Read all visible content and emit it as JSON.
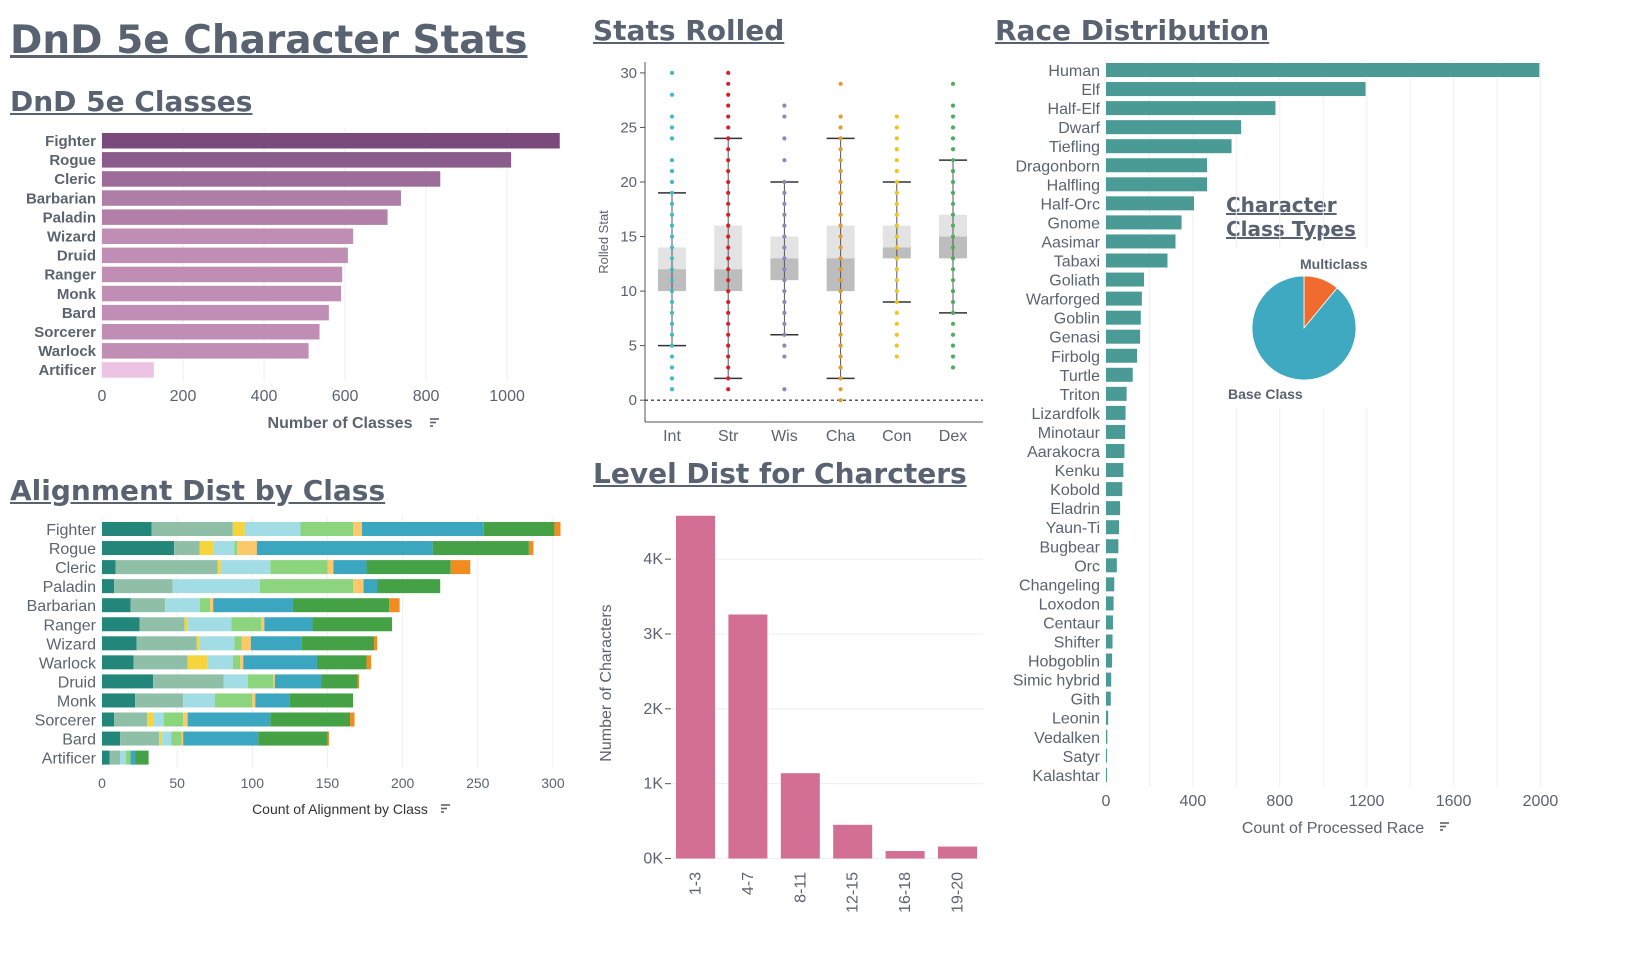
{
  "dashboard_title": "DnD 5e Character Stats",
  "colors": {
    "title": "#596271",
    "axis_text": "#5b6371",
    "race_bar": "#4a9a96",
    "level_bar": "#d36f94",
    "pie_base": "#3fa9c1",
    "pie_multi": "#f26b2e"
  },
  "chart_data": [
    {
      "id": "classes",
      "type": "bar",
      "orientation": "horizontal",
      "title": "DnD 5e Classes ",
      "xlabel": "Number of Classes",
      "xlim": [
        0,
        1180
      ],
      "xticks": [
        0,
        200,
        400,
        600,
        800,
        1000
      ],
      "categories": [
        "Fighter",
        "Rogue",
        "Cleric",
        "Barbarian",
        "Paladin",
        "Wizard",
        "Druid",
        "Ranger",
        "Monk",
        "Bard",
        "Sorcerer",
        "Warlock",
        "Artificer"
      ],
      "values": [
        1130,
        1010,
        835,
        738,
        705,
        620,
        607,
        593,
        590,
        560,
        537,
        510,
        128
      ],
      "bar_colors": [
        "#7b4a7c",
        "#8a5c8b",
        "#9d6c9b",
        "#ae7ea9",
        "#b27fa8",
        "#c08db5",
        "#c08db5",
        "#c08db5",
        "#c08db5",
        "#c08db5",
        "#c08db5",
        "#c08db5",
        "#edc3e3"
      ]
    },
    {
      "id": "stats",
      "type": "box",
      "title": "Stats Rolled",
      "ylabel": "Rolled Stat",
      "ylim": [
        -2,
        31
      ],
      "yticks": [
        0,
        5,
        10,
        15,
        20,
        25,
        30
      ],
      "reference_line": 0,
      "series": [
        {
          "name": "Int",
          "color": "#3dbcc8",
          "whisker_low": 5,
          "q1": 10,
          "median": 12,
          "q3": 14,
          "whisker_high": 19,
          "points": [
            1,
            2,
            3,
            4,
            5,
            6,
            7,
            8,
            9,
            10,
            11,
            12,
            13,
            14,
            15,
            16,
            17,
            18,
            19,
            20,
            21,
            22,
            24,
            25,
            26,
            28,
            30
          ]
        },
        {
          "name": "Str",
          "color": "#d8202d",
          "whisker_low": 2,
          "q1": 10,
          "median": 12,
          "q3": 16,
          "whisker_high": 24,
          "points": [
            1,
            2,
            3,
            4,
            5,
            6,
            7,
            8,
            9,
            10,
            11,
            12,
            13,
            14,
            15,
            16,
            17,
            18,
            19,
            20,
            21,
            22,
            23,
            24,
            25,
            26,
            27,
            28,
            29,
            30
          ]
        },
        {
          "name": "Wis",
          "color": "#8b86c4",
          "whisker_low": 6,
          "q1": 11,
          "median": 13,
          "q3": 15,
          "whisker_high": 20,
          "points": [
            1,
            4,
            5,
            6,
            7,
            8,
            9,
            10,
            11,
            12,
            13,
            14,
            15,
            16,
            17,
            18,
            19,
            20,
            22,
            24,
            26,
            27
          ]
        },
        {
          "name": "Cha",
          "color": "#e69a2a",
          "whisker_low": 2,
          "q1": 10,
          "median": 13,
          "q3": 16,
          "whisker_high": 24,
          "points": [
            0,
            1,
            2,
            3,
            4,
            5,
            6,
            7,
            8,
            9,
            10,
            11,
            12,
            13,
            14,
            15,
            16,
            17,
            18,
            19,
            20,
            21,
            22,
            23,
            24,
            25,
            26,
            29
          ]
        },
        {
          "name": "Con",
          "color": "#f2c418",
          "whisker_low": 9,
          "q1": 13,
          "median": 14,
          "q3": 16,
          "whisker_high": 20,
          "points": [
            4,
            5,
            6,
            7,
            8,
            9,
            10,
            11,
            12,
            13,
            14,
            15,
            16,
            17,
            18,
            19,
            20,
            21,
            22,
            23,
            24,
            25,
            26
          ]
        },
        {
          "name": "Dex",
          "color": "#4cae5a",
          "whisker_low": 8,
          "q1": 13,
          "median": 15,
          "q3": 17,
          "whisker_high": 22,
          "points": [
            3,
            4,
            5,
            6,
            7,
            8,
            9,
            10,
            11,
            12,
            13,
            14,
            15,
            16,
            17,
            18,
            19,
            20,
            21,
            22,
            23,
            24,
            25,
            26,
            27,
            29
          ]
        }
      ]
    },
    {
      "id": "race",
      "type": "bar",
      "orientation": "horizontal",
      "title": "Race Distribution",
      "xlabel": "Count of Processed Race",
      "xlim": [
        0,
        2090
      ],
      "xticks": [
        0,
        400,
        800,
        1200,
        1600,
        2000
      ],
      "categories": [
        "Human",
        "Elf",
        "Half-Elf",
        "Dwarf",
        "Tiefling",
        "Dragonborn",
        "Halfling",
        "Half-Orc",
        "Gnome",
        "Aasimar",
        "Tabaxi",
        "Goliath",
        "Warforged",
        "Goblin",
        "Genasi",
        "Firbolg",
        "Turtle",
        "Triton",
        "Lizardfolk",
        "Minotaur",
        "Aarakocra",
        "Kenku",
        "Kobold",
        "Eladrin",
        "Yaun-Ti",
        "Bugbear",
        "Orc",
        "Changeling",
        "Loxodon",
        "Centaur",
        "Shifter",
        "Hobgoblin",
        "Simic hybrid",
        "Gith",
        "Leonin",
        "Vedalken",
        "Satyr",
        "Kalashtar"
      ],
      "values": [
        1995,
        1195,
        780,
        622,
        578,
        465,
        465,
        405,
        348,
        320,
        283,
        175,
        165,
        160,
        157,
        143,
        123,
        95,
        90,
        88,
        85,
        80,
        75,
        65,
        60,
        57,
        50,
        38,
        35,
        32,
        30,
        28,
        24,
        22,
        10,
        6,
        4,
        3
      ]
    },
    {
      "id": "class_types",
      "type": "pie",
      "title_line1": "Character",
      "title_line2": "Class Types",
      "labels": [
        "Multiclass",
        "Base Class"
      ],
      "values": [
        11,
        89
      ]
    },
    {
      "id": "alignment",
      "type": "bar",
      "orientation": "horizontal",
      "stacked": true,
      "title": "Alignment Dist by Class",
      "xlabel": "Count of Alignment by Class",
      "xlim": [
        0,
        318
      ],
      "xticks": [
        0,
        50,
        100,
        150,
        200,
        250,
        300
      ],
      "categories": [
        "Fighter",
        "Rogue",
        "Cleric",
        "Paladin",
        "Barbarian",
        "Ranger",
        "Wizard",
        "Warlock",
        "Druid",
        "Monk",
        "Sorcerer",
        "Bard",
        "Artificer"
      ],
      "segment_colors": [
        "#22877a",
        "#8fc0a7",
        "#f6d43b",
        "#a2dde6",
        "#8cd47e",
        "#fcc86a",
        "#3aa6c0",
        "#45a146",
        "#f18c1f"
      ],
      "segments": [
        [
          33,
          54,
          8,
          37,
          35,
          6,
          81,
          47,
          4
        ],
        [
          48,
          17,
          9,
          14,
          2,
          13,
          117,
          64,
          3
        ],
        [
          9,
          68,
          2,
          33,
          38,
          4,
          22,
          56,
          13
        ],
        [
          8,
          39,
          0,
          58,
          62,
          7,
          9,
          42,
          0
        ],
        [
          19,
          23,
          0,
          23,
          7,
          2,
          53,
          64,
          7
        ],
        [
          25,
          30,
          2,
          29,
          20,
          2,
          32,
          53,
          0
        ],
        [
          23,
          40,
          2,
          23,
          5,
          6,
          34,
          48,
          2
        ],
        [
          21,
          36,
          13,
          17,
          5,
          2,
          49,
          33,
          3
        ],
        [
          34,
          47,
          0,
          16,
          17,
          1,
          31,
          24,
          1
        ],
        [
          22,
          32,
          0,
          21,
          25,
          2,
          23,
          42,
          0
        ],
        [
          8,
          22,
          4,
          7,
          13,
          3,
          55,
          53,
          3
        ],
        [
          12,
          26,
          2,
          6,
          7,
          1,
          50,
          46,
          1
        ],
        [
          5,
          7,
          0,
          4,
          3,
          0,
          3,
          9,
          0
        ]
      ]
    },
    {
      "id": "levels",
      "type": "bar",
      "orientation": "vertical",
      "title": "Level Dist for Charcters",
      "ylabel": "Number of Characters",
      "ylim": [
        -100,
        4750
      ],
      "yticks": [
        0,
        1000,
        2000,
        3000,
        4000
      ],
      "ytick_labels": [
        "0K",
        "1K",
        "2K",
        "3K",
        "4K"
      ],
      "categories": [
        "1-3",
        "4-7",
        "8-11",
        "12-15",
        "16-18",
        "19-20"
      ],
      "values": [
        4580,
        3260,
        1140,
        450,
        100,
        160
      ]
    }
  ]
}
